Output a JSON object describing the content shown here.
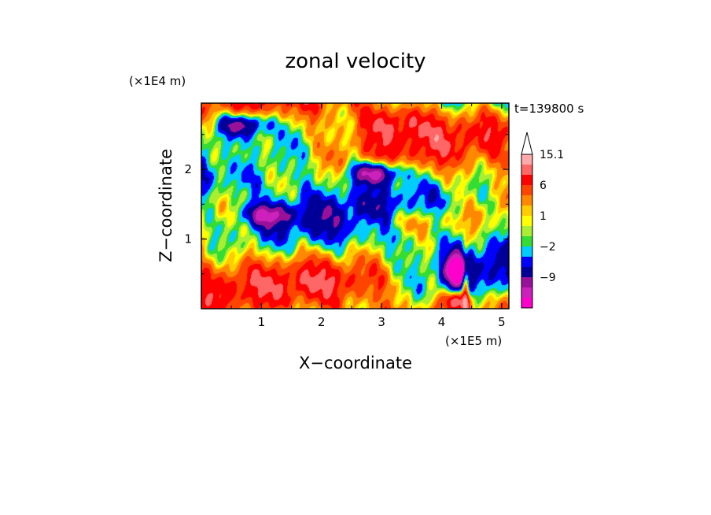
{
  "chart_data": {
    "type": "heatmap",
    "title": "zonal velocity",
    "xlabel": "X−coordinate",
    "ylabel": "Z−coordinate",
    "x_unit_label": "(×1E5 m)",
    "y_unit_label": "(×1E4 m)",
    "time_label": "t=139800 s",
    "xlim": [
      0,
      5.12
    ],
    "ylim": [
      0,
      2.95
    ],
    "x_ticks": [
      1,
      2,
      3,
      4,
      5
    ],
    "y_ticks": [
      1,
      2
    ],
    "x_tick_labels": [
      "1",
      "2",
      "3",
      "4",
      "5"
    ],
    "y_tick_labels": [
      "1",
      "2"
    ],
    "grid": false,
    "legend": "colorbar-right",
    "colorbar": {
      "levels": [
        -15,
        -12,
        -9,
        -6,
        -4,
        -2,
        -1,
        0,
        1,
        2,
        4,
        6,
        9,
        12,
        15.1
      ],
      "colors": [
        "#ff00cc",
        "#cc22bb",
        "#991199",
        "#000099",
        "#0000ff",
        "#00ccff",
        "#33dd33",
        "#aaee33",
        "#ffff00",
        "#ffcc00",
        "#ff8800",
        "#ff4400",
        "#ff0000",
        "#ff6666",
        "#ffaaaa"
      ],
      "extend_max_color": "#ffffff",
      "labeled": [
        {
          "value": 15.1,
          "text": "15.1"
        },
        {
          "value": 6,
          "text": "6"
        },
        {
          "value": 1,
          "text": "1"
        },
        {
          "value": -2,
          "text": "−2"
        },
        {
          "value": -9,
          "text": "−9"
        }
      ]
    }
  }
}
